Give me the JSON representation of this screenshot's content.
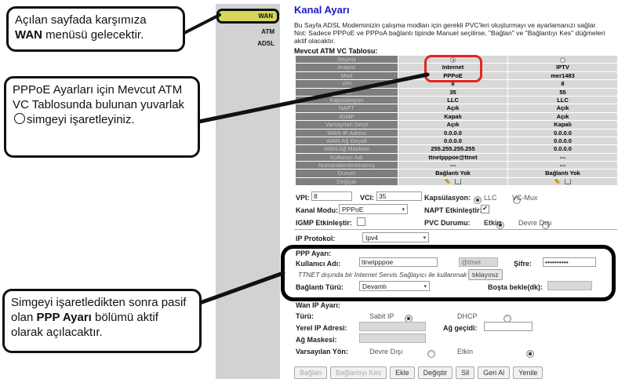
{
  "colors": {
    "accent_blue": "#1a1acb",
    "highlight_yellow": "#d6d65a",
    "highlight_red": "#e3251c",
    "sidebar_gray": "#d2d2d2",
    "table_label_gray": "#7e7e7e",
    "table_cell_gray": "#d8d8d8"
  },
  "icons": {
    "caret": "▾",
    "check": "✔",
    "circle": "",
    "pencil": "✎"
  },
  "callouts": {
    "c1": {
      "pre": "Açılan sayfada karşımıza ",
      "bold": "WAN",
      "post": " menüsü gelecektir."
    },
    "c2": {
      "pre": "PPPoE Ayarları için Mevcut ATM VC Tablosunda bulunan yuvarlak",
      "post": "simgeyi işaretleyiniz."
    },
    "c3": {
      "pre": "Simgeyi işaretledikten sonra pasif olan ",
      "bold": "PPP Ayarı",
      "post": " bölümü aktif olarak açılacaktır."
    }
  },
  "sidebar": {
    "items": [
      {
        "label": "WAN",
        "active": true
      },
      {
        "label": "ATM",
        "active": false
      },
      {
        "label": "ADSL",
        "active": false
      }
    ]
  },
  "main": {
    "title": "Kanal Ayarı",
    "description_line1": "Bu Sayfa ADSL Modeminizin çalışma modları için gerekli PVC'leri oluşturmayı ve ayarlamanızı sağlar.",
    "description_line2": "Not: Sadece PPPoE ve PPPoA bağlantı tipinde Manuel seçilirse, \"Bağlan\" ve \"Bağlantıyı Kes\" düğmeleri aktif olacaktır.",
    "table": {
      "title": "Mevcut ATM VC Tablosu:",
      "rows": [
        {
          "label": "Seçiniz",
          "type": "radio",
          "col1_checked": true,
          "col2_checked": false
        },
        {
          "label": "Arayüz",
          "col1": "Internet",
          "col2": "IPTV"
        },
        {
          "label": "Mod",
          "col1": "PPPoE",
          "col2": "mer1483"
        },
        {
          "label": "VPI",
          "col1": "8",
          "col2": "8"
        },
        {
          "label": "VCI",
          "col1": "35",
          "col2": "55"
        },
        {
          "label": "Kapsülasyon",
          "col1": "LLC",
          "col2": "LLC"
        },
        {
          "label": "NAPT",
          "col1": "Açık",
          "col2": "Açık"
        },
        {
          "label": "IGMP",
          "col1": "Kapalı",
          "col2": "Açık"
        },
        {
          "label": "Varsayılan Geçit",
          "col1": "Açık",
          "col2": "Kapalı"
        },
        {
          "label": "WAN IP Adresi",
          "col1": "0.0.0.0",
          "col2": "0.0.0.0"
        },
        {
          "label": "WAN Ağ Geçidi",
          "col1": "0.0.0.0",
          "col2": "0.0.0.0"
        },
        {
          "label": "WAN Ağ Maskesi",
          "col1": "255.255.255.255",
          "col2": "0.0.0.0"
        },
        {
          "label": "Kullanıcı Adı",
          "col1": "ttnetpppoe@ttnet",
          "col2": "---"
        },
        {
          "label": "Numaralandırılmamış",
          "col1": "---",
          "col2": "---"
        },
        {
          "label": "Durum",
          "col1": "Bağlantı Yok",
          "col2": "Bağlantı Yok"
        },
        {
          "label": "Değiştir",
          "type": "icons"
        }
      ]
    },
    "form": {
      "vpi_label": "VPI:",
      "vpi_value": "8",
      "vci_label": "VCI:",
      "vci_value": "35",
      "kanal_modu_label": "Kanal Modu:",
      "kanal_modu_value": "PPPoE",
      "igmp_label": "IGMP Etkinleştir:",
      "kapsulasyon_label": "Kapsülasyon:",
      "llc_label": "LLC",
      "vcmux_label": "VC-Mux",
      "napt_label": "NAPT Etkinleştir:",
      "pvc_label": "PVC Durumu:",
      "pvc_etkin_label": "Etkin",
      "pvc_devre_label": "Devre Dışı",
      "ip_protokol_label": "IP Protokol:",
      "ip_protokol_value": "Ipv4"
    },
    "ppp": {
      "title": "PPP Ayarı:",
      "kullanici_label": "Kullanıcı Adı:",
      "kullanici_value": "ttnetpppoe",
      "domain_value": "@ttnet",
      "sifre_label": "Şifre:",
      "sifre_value": "••••••••••",
      "note": "TTNET dışında bir İnternet Servis Sağlayıcı ile kullanmak için",
      "note_button": "tıklayınız",
      "baglanti_label": "Bağlantı Türü:",
      "baglanti_value": "Devamlı",
      "bosta_label": "Boşta bekle(dk):"
    },
    "wanip": {
      "title": "Wan IP Ayarı:",
      "turu_label": "Türü:",
      "sabit_label": "Sabit IP",
      "dhcp_label": "DHCP",
      "yerel_label": "Yerel IP Adresi:",
      "ag_gecidi_label": "Ağ geçidi:",
      "ag_maskesi_label": "Ağ Maskesi:",
      "varsayilan_label": "Varsayılan Yön:",
      "devre_label": "Devre Dışı",
      "etkin_label": "Etkin"
    },
    "buttons": [
      {
        "label": "Bağlan",
        "disabled": true
      },
      {
        "label": "Bağlantıyı Kes",
        "disabled": true
      },
      {
        "label": "Ekle",
        "disabled": false
      },
      {
        "label": "Değiştir",
        "disabled": false
      },
      {
        "label": "Sil",
        "disabled": false
      },
      {
        "label": "Geri Al",
        "disabled": false
      },
      {
        "label": "Yenile",
        "disabled": false
      }
    ]
  }
}
